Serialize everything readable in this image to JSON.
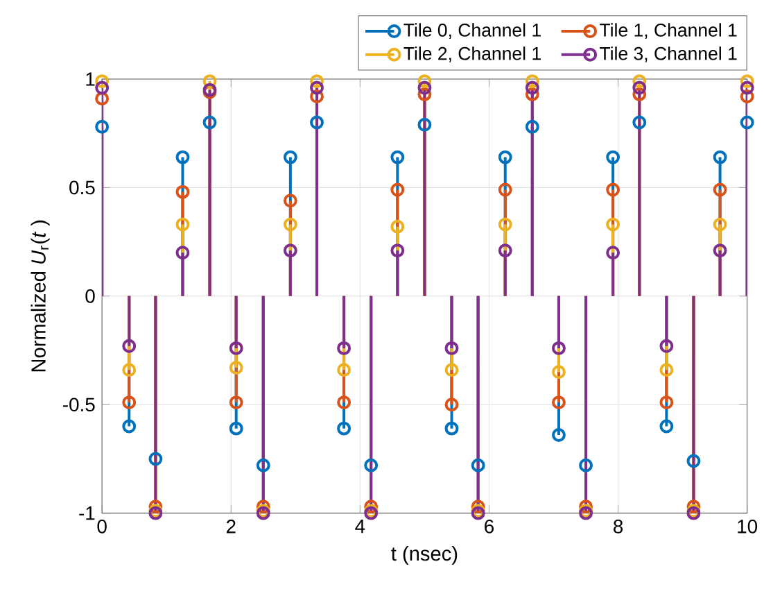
{
  "chart_data": {
    "type": "lollipop",
    "xlabel": "t    (nsec)",
    "ylabel": "Normalized *U*$_{r}$(*t* )",
    "x": [
      0,
      0.42,
      0.83,
      1.25,
      1.67,
      2.08,
      2.5,
      2.92,
      3.33,
      3.75,
      4.17,
      4.58,
      5,
      5.42,
      5.83,
      6.25,
      6.67,
      7.08,
      7.5,
      7.92,
      8.33,
      8.75,
      9.17,
      9.58,
      10
    ],
    "series": [
      {
        "name": "Tile 0, Channel 1",
        "color": "#0072bd",
        "values": [
          0.78,
          -0.6,
          -0.75,
          0.64,
          0.8,
          -0.61,
          -0.78,
          0.64,
          0.8,
          -0.61,
          -0.78,
          0.64,
          0.79,
          -0.61,
          -0.78,
          0.64,
          0.78,
          -0.64,
          -0.78,
          0.64,
          0.8,
          -0.6,
          -0.76,
          0.64,
          0.8
        ]
      },
      {
        "name": "Tile 1, Channel 1",
        "color": "#d95319",
        "values": [
          0.91,
          -0.49,
          -0.97,
          0.48,
          0.94,
          -0.49,
          -0.97,
          0.44,
          0.92,
          -0.49,
          -0.97,
          0.49,
          0.93,
          -0.5,
          -0.97,
          0.49,
          0.93,
          -0.49,
          -0.97,
          0.49,
          0.93,
          -0.49,
          -0.97,
          0.49,
          0.92
        ]
      },
      {
        "name": "Tile 2, Channel 1",
        "color": "#edb120",
        "values": [
          0.99,
          -0.34,
          -0.99,
          0.33,
          0.99,
          -0.33,
          -0.99,
          0.33,
          0.99,
          -0.34,
          -0.99,
          0.32,
          0.99,
          -0.34,
          -0.99,
          0.33,
          0.99,
          -0.35,
          -0.99,
          0.33,
          0.99,
          -0.34,
          -0.99,
          0.33,
          0.99
        ]
      },
      {
        "name": "Tile 3, Channel 1",
        "color": "#7e2f8e",
        "values": [
          0.96,
          -0.23,
          -1,
          0.2,
          0.95,
          -0.24,
          -1,
          0.21,
          0.96,
          -0.24,
          -1,
          0.21,
          0.96,
          -0.24,
          -1,
          0.21,
          0.96,
          -0.24,
          -1,
          0.2,
          0.96,
          -0.23,
          -1,
          0.21,
          0.96
        ]
      }
    ],
    "xlim": [
      0,
      10
    ],
    "xticks": [
      0,
      2,
      4,
      6,
      8,
      10
    ],
    "ylim": [
      -1,
      1
    ],
    "yticks": [
      -1,
      -0.5,
      0,
      0.5,
      1
    ],
    "grid": true,
    "legend": "top right",
    "marker": "circle"
  }
}
